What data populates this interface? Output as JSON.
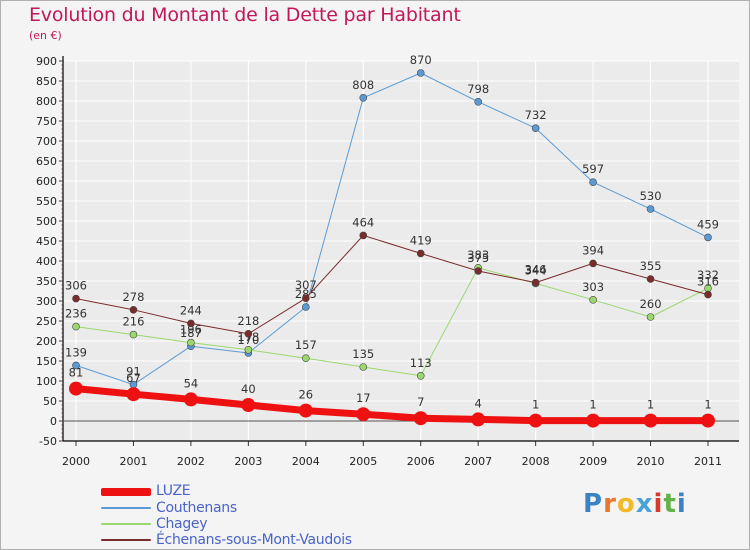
{
  "title": "Evolution du Montant de la Dette par Habitant",
  "subtitle": "(en €)",
  "colors": {
    "title": "#c2185b",
    "legend_text": "#4a63c9",
    "axis": "#000000",
    "grid": "#ffffff",
    "background": "#f4f4f4"
  },
  "logo": {
    "letters": [
      "P",
      "r",
      "o",
      "x",
      "i",
      "t",
      "i"
    ],
    "colors": [
      "#3b82c4",
      "#e8762d",
      "#f2b928",
      "#49a3d6",
      "#d93a2b",
      "#62b34a",
      "#3b82c4"
    ]
  },
  "chart_data": {
    "type": "line",
    "title": "Evolution du Montant de la Dette par Habitant",
    "subtitle": "(en €)",
    "x": [
      "2000",
      "2001",
      "2002",
      "2003",
      "2004",
      "2005",
      "2006",
      "2007",
      "2008",
      "2009",
      "2010",
      "2011"
    ],
    "ylim": [
      -50,
      900
    ],
    "yticks": [
      -50,
      0,
      50,
      100,
      150,
      200,
      250,
      300,
      350,
      400,
      450,
      500,
      550,
      600,
      650,
      700,
      750,
      800,
      850,
      900
    ],
    "grid": true,
    "legend_position": "bottom-left",
    "series": [
      {
        "name": "LUZE",
        "color": "#ee1111",
        "width": 7,
        "marker": 7,
        "values": [
          81,
          67,
          54,
          40,
          26,
          17,
          7,
          4,
          1,
          1,
          1,
          1
        ],
        "labels": [
          "81",
          "67",
          "54",
          "40",
          "26",
          "17",
          "7",
          "4",
          "1",
          "1",
          "1",
          "1"
        ]
      },
      {
        "name": "Couthenans",
        "color": "#5b9bd5",
        "width": 1,
        "marker": 3.5,
        "values": [
          139,
          91,
          187,
          170,
          285,
          808,
          870,
          798,
          732,
          597,
          530,
          459
        ],
        "labels": [
          "139",
          "91",
          "187",
          "170",
          "285",
          "808",
          "870",
          "798",
          "732",
          "597",
          "530",
          "459"
        ]
      },
      {
        "name": "Chagey",
        "color": "#9ad86e",
        "width": 1,
        "marker": 3.5,
        "values": [
          236,
          216,
          196,
          178,
          157,
          135,
          113,
          383,
          344,
          303,
          260,
          332
        ],
        "labels": [
          "236",
          "216",
          "196",
          "178",
          "157",
          "135",
          "113",
          "383",
          "344",
          "303",
          "260",
          "332"
        ]
      },
      {
        "name": "Échenans-sous-Mont-Vaudois",
        "color": "#7a2b2b",
        "width": 1,
        "marker": 3.5,
        "values": [
          306,
          278,
          244,
          218,
          307,
          464,
          419,
          375,
          346,
          394,
          355,
          316
        ],
        "labels": [
          "306",
          "278",
          "244",
          "218",
          "307",
          "464",
          "419",
          "375",
          "346",
          "394",
          "355",
          "316"
        ]
      }
    ]
  }
}
